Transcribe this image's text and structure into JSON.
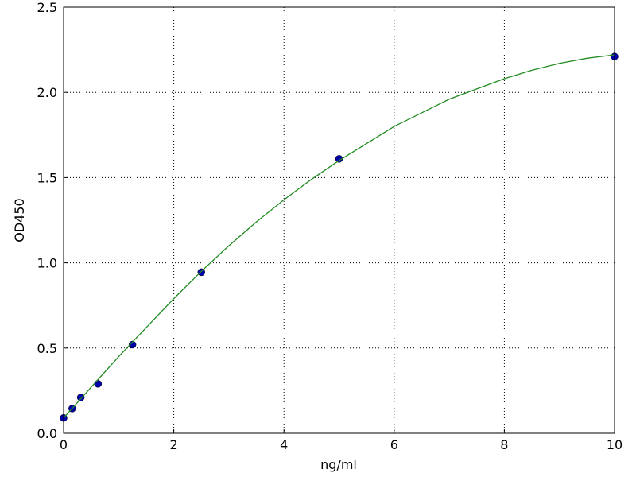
{
  "chart_data": {
    "type": "scatter",
    "xlabel": "ng/ml",
    "ylabel": "OD450",
    "xlim": [
      0,
      10
    ],
    "ylim": [
      0,
      2.5
    ],
    "xticks": [
      0,
      2,
      4,
      6,
      8,
      10
    ],
    "yticks": [
      {
        "value": 0,
        "label": "0.0"
      },
      0.5,
      {
        "value": 1,
        "label": "1.0"
      },
      1.5,
      {
        "value": 2,
        "label": "2.0"
      },
      2.5
    ],
    "grid": true,
    "series": [
      {
        "color": "#0000aa",
        "marker": "circle",
        "x": [
          0,
          0.156,
          0.312,
          0.625,
          1.25,
          2.5,
          5,
          10
        ],
        "values": [
          0.09,
          0.145,
          0.21,
          0.29,
          0.52,
          0.945,
          1.61,
          2.21
        ]
      },
      {
        "color": "#228b22",
        "line": true,
        "x": [
          0,
          0.5,
          1,
          1.5,
          2,
          2.5,
          3,
          3.5,
          4,
          4.5,
          5,
          5.5,
          6,
          6.5,
          7,
          7.5,
          8,
          8.5,
          9,
          9.5,
          10
        ],
        "values": [
          0.09,
          0.27,
          0.45,
          0.62,
          0.79,
          0.95,
          1.1,
          1.24,
          1.37,
          1.49,
          1.6,
          1.7,
          1.8,
          1.88,
          1.96,
          2.02,
          2.08,
          2.13,
          2.17,
          2.2,
          2.22
        ]
      }
    ]
  }
}
